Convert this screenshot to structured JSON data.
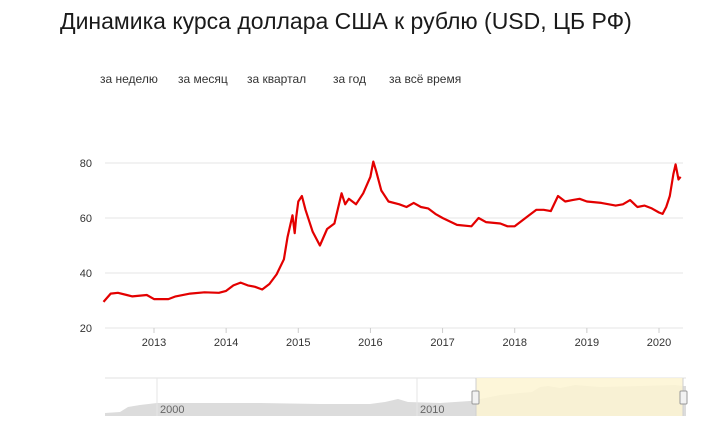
{
  "page": {
    "title": "Динамика курса доллара США к рублю (USD, ЦБ РФ)"
  },
  "periods": [
    {
      "label": "за неделю"
    },
    {
      "label": "за месяц"
    },
    {
      "label": "за квартал"
    },
    {
      "label": "за год"
    },
    {
      "label": "за всё время"
    }
  ],
  "navigator": {
    "year_labels": [
      "2000",
      "2010"
    ]
  },
  "colors": {
    "line": "#e30000",
    "grid": "#e6e6e6",
    "navigator_fill": "#dcdcdc",
    "navigator_selection": "#fdf5d2"
  },
  "chart_data": {
    "type": "line",
    "title": "Динамика курса доллара США к рублю (USD, ЦБ РФ)",
    "xlabel": "",
    "ylabel": "",
    "xlim": [
      2012.3,
      2020.3
    ],
    "ylim": [
      20,
      85
    ],
    "yticks": [
      20,
      40,
      60,
      80
    ],
    "xticks": [
      2013,
      2014,
      2015,
      2016,
      2017,
      2018,
      2019,
      2020
    ],
    "grid": true,
    "legend": "none",
    "series": [
      {
        "name": "",
        "x": [
          2012.3,
          2012.4,
          2012.5,
          2012.7,
          2012.9,
          2013.0,
          2013.2,
          2013.3,
          2013.5,
          2013.7,
          2013.9,
          2014.0,
          2014.1,
          2014.2,
          2014.3,
          2014.4,
          2014.5,
          2014.6,
          2014.7,
          2014.8,
          2014.85,
          2014.92,
          2014.95,
          2014.97,
          2015.0,
          2015.05,
          2015.1,
          2015.2,
          2015.3,
          2015.4,
          2015.5,
          2015.6,
          2015.65,
          2015.7,
          2015.8,
          2015.9,
          2016.0,
          2016.04,
          2016.08,
          2016.15,
          2016.25,
          2016.4,
          2016.5,
          2016.6,
          2016.7,
          2016.8,
          2016.9,
          2017.0,
          2017.2,
          2017.4,
          2017.5,
          2017.6,
          2017.8,
          2017.9,
          2018.0,
          2018.2,
          2018.3,
          2018.4,
          2018.5,
          2018.6,
          2018.7,
          2018.8,
          2018.9,
          2019.0,
          2019.2,
          2019.4,
          2019.5,
          2019.6,
          2019.7,
          2019.8,
          2019.9,
          2020.0,
          2020.05,
          2020.1,
          2020.15,
          2020.2,
          2020.23,
          2020.27,
          2020.3
        ],
        "values": [
          29.5,
          32.5,
          32.8,
          31.5,
          32.0,
          30.5,
          30.5,
          31.5,
          32.5,
          33.0,
          32.8,
          33.5,
          35.5,
          36.5,
          35.5,
          35.0,
          34.0,
          36.0,
          39.5,
          45.0,
          53.0,
          61.0,
          54.5,
          60.0,
          66.0,
          68.0,
          63.0,
          55.0,
          50.0,
          56.0,
          58.0,
          69.0,
          65.0,
          67.0,
          65.0,
          69.0,
          75.0,
          80.5,
          77.0,
          70.0,
          66.0,
          65.0,
          64.0,
          65.5,
          64.0,
          63.5,
          61.5,
          60.0,
          57.5,
          57.0,
          60.0,
          58.5,
          58.0,
          57.0,
          57.0,
          61.0,
          63.0,
          63.0,
          62.5,
          68.0,
          66.0,
          66.5,
          67.0,
          66.0,
          65.5,
          64.5,
          65.0,
          66.5,
          64.0,
          64.5,
          63.5,
          62.0,
          61.5,
          64.0,
          68.0,
          76.0,
          79.5,
          74.0,
          75.0
        ]
      }
    ]
  }
}
